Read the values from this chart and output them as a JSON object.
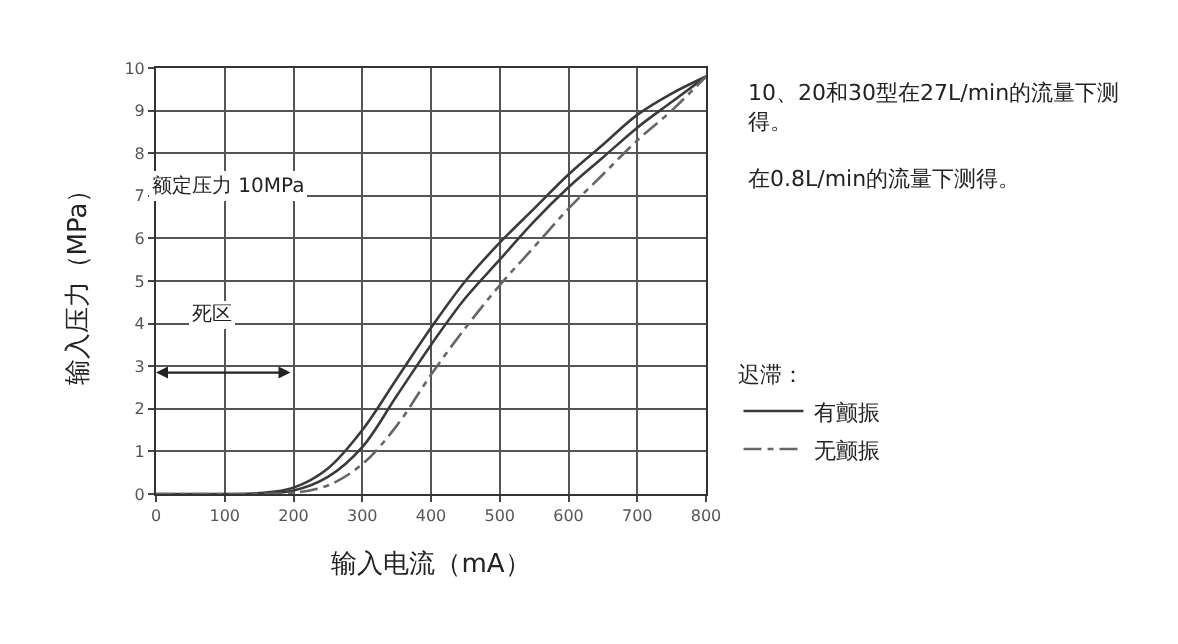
{
  "chart_data": {
    "type": "line",
    "xlabel": "输入电流（mA）",
    "ylabel": "输入压力（MPa）",
    "legend_title": "迟滞：",
    "series": [
      {
        "name": "有颤振",
        "color": "#3a3a3a",
        "line_style": "solid",
        "x": [
          0,
          100,
          150,
          200,
          250,
          300,
          350,
          400,
          450,
          500,
          550,
          600,
          650,
          700,
          750,
          800
        ],
        "values": [
          0,
          0,
          0.02,
          0.15,
          0.6,
          1.5,
          2.7,
          3.9,
          5.0,
          5.9,
          6.7,
          7.5,
          8.2,
          8.9,
          9.4,
          9.8
        ]
      },
      {
        "color": "#3a3a3a",
        "line_style": "solid",
        "x": [
          150,
          200,
          250,
          300,
          350,
          400,
          450,
          500,
          550,
          600,
          650,
          700,
          750,
          800
        ],
        "values": [
          0.01,
          0.08,
          0.4,
          1.1,
          2.3,
          3.5,
          4.6,
          5.5,
          6.4,
          7.2,
          7.9,
          8.6,
          9.2,
          9.8
        ]
      },
      {
        "name": "无颤振",
        "color": "#666666",
        "line_style": "dashdot",
        "x": [
          0,
          100,
          150,
          200,
          250,
          300,
          350,
          400,
          450,
          500,
          550,
          600,
          650,
          700,
          750,
          800
        ],
        "values": [
          0,
          0,
          0,
          0.03,
          0.2,
          0.7,
          1.6,
          2.8,
          3.9,
          4.9,
          5.8,
          6.7,
          7.5,
          8.3,
          9.0,
          9.8
        ]
      }
    ],
    "xlim": [
      0,
      800
    ],
    "xticks": [
      0,
      100,
      200,
      300,
      400,
      500,
      600,
      700,
      800
    ],
    "ylim": [
      0,
      10
    ],
    "yticks": [
      0,
      1,
      2,
      3,
      4,
      5,
      6,
      7,
      8,
      9,
      10
    ],
    "grid": true,
    "legend": "right",
    "annotations": [
      "额定压力 10MPa",
      "死区",
      "10、20和30型在27L/min的流量下测得。",
      "在0.8L/min的流量下测得。"
    ]
  }
}
